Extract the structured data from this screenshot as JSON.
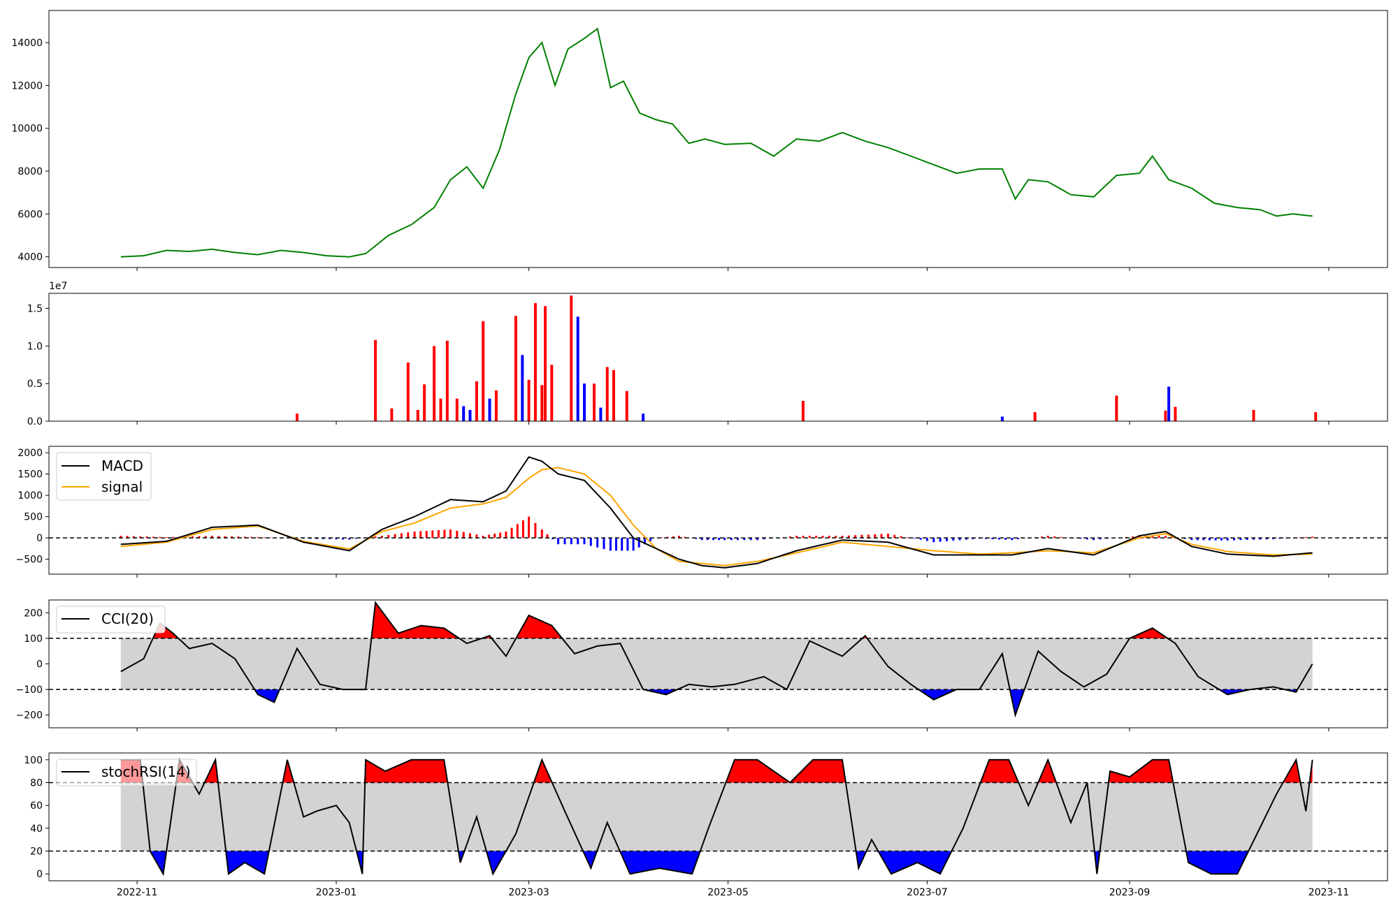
{
  "chart_data": [
    {
      "type": "line",
      "name": "price",
      "color": "#008000",
      "ylim": [
        3500,
        15500
      ],
      "y_ticks": [
        4000,
        6000,
        8000,
        10000,
        12000,
        14000
      ],
      "y_tick_labels": [
        "4000",
        "6000",
        "8000",
        "10000",
        "12000",
        "14000"
      ],
      "x": [
        "2022-10-27",
        "2022-11-03",
        "2022-11-10",
        "2022-11-17",
        "2022-11-24",
        "2022-12-01",
        "2022-12-08",
        "2022-12-15",
        "2022-12-22",
        "2022-12-29",
        "2023-01-05",
        "2023-01-10",
        "2023-01-17",
        "2023-01-24",
        "2023-01-31",
        "2023-02-05",
        "2023-02-10",
        "2023-02-15",
        "2023-02-20",
        "2023-02-25",
        "2023-03-01",
        "2023-03-05",
        "2023-03-09",
        "2023-03-13",
        "2023-03-18",
        "2023-03-22",
        "2023-03-26",
        "2023-03-30",
        "2023-04-04",
        "2023-04-09",
        "2023-04-14",
        "2023-04-19",
        "2023-04-24",
        "2023-04-30",
        "2023-05-08",
        "2023-05-15",
        "2023-05-22",
        "2023-05-29",
        "2023-06-05",
        "2023-06-12",
        "2023-06-19",
        "2023-06-26",
        "2023-07-03",
        "2023-07-10",
        "2023-07-17",
        "2023-07-24",
        "2023-07-28",
        "2023-08-01",
        "2023-08-07",
        "2023-08-14",
        "2023-08-21",
        "2023-08-28",
        "2023-09-04",
        "2023-09-08",
        "2023-09-13",
        "2023-09-20",
        "2023-09-27",
        "2023-10-04",
        "2023-10-11",
        "2023-10-16",
        "2023-10-21",
        "2023-10-27"
      ],
      "y": [
        4000,
        4050,
        4300,
        4250,
        4350,
        4200,
        4100,
        4300,
        4200,
        4050,
        4000,
        4150,
        5000,
        5500,
        6300,
        7600,
        8200,
        7200,
        9000,
        11600,
        13300,
        14000,
        12000,
        13700,
        14200,
        14650,
        11900,
        12200,
        10700,
        10400,
        10200,
        9300,
        9500,
        9250,
        9300,
        8700,
        9500,
        9400,
        9800,
        9400,
        9100,
        8700,
        8300,
        7900,
        8100,
        8100,
        6700,
        7600,
        7500,
        6900,
        6800,
        7800,
        7900,
        8700,
        7600,
        7200,
        6500,
        6300,
        6200,
        5900,
        6000,
        5900
      ]
    },
    {
      "type": "bar",
      "name": "volume",
      "scale_label": "1e7",
      "ylim": [
        0,
        1.7
      ],
      "y_ticks": [
        0,
        0.5,
        1.0,
        1.5
      ],
      "y_tick_labels": [
        "0.0",
        "0.5",
        "1.0",
        "1.5"
      ],
      "up_color": "#ff0000",
      "down_color": "#0000ff",
      "bars": [
        {
          "date": "2022-12-20",
          "value": 0.1,
          "up": true
        },
        {
          "date": "2023-01-13",
          "value": 1.08,
          "up": true
        },
        {
          "date": "2023-01-18",
          "value": 0.17,
          "up": true
        },
        {
          "date": "2023-01-23",
          "value": 0.78,
          "up": true
        },
        {
          "date": "2023-01-26",
          "value": 0.15,
          "up": true
        },
        {
          "date": "2023-01-28",
          "value": 0.49,
          "up": true
        },
        {
          "date": "2023-01-31",
          "value": 1.0,
          "up": true
        },
        {
          "date": "2023-02-02",
          "value": 0.3,
          "up": true
        },
        {
          "date": "2023-02-04",
          "value": 1.07,
          "up": true
        },
        {
          "date": "2023-02-07",
          "value": 0.3,
          "up": true
        },
        {
          "date": "2023-02-09",
          "value": 0.2,
          "up": false
        },
        {
          "date": "2023-02-11",
          "value": 0.15,
          "up": false
        },
        {
          "date": "2023-02-13",
          "value": 0.53,
          "up": true
        },
        {
          "date": "2023-02-15",
          "value": 1.33,
          "up": true
        },
        {
          "date": "2023-02-17",
          "value": 0.3,
          "up": false
        },
        {
          "date": "2023-02-19",
          "value": 0.41,
          "up": true
        },
        {
          "date": "2023-02-25",
          "value": 1.4,
          "up": true
        },
        {
          "date": "2023-02-27",
          "value": 0.88,
          "up": false
        },
        {
          "date": "2023-03-01",
          "value": 0.55,
          "up": true
        },
        {
          "date": "2023-03-03",
          "value": 1.57,
          "up": true
        },
        {
          "date": "2023-03-05",
          "value": 0.48,
          "up": true
        },
        {
          "date": "2023-03-06",
          "value": 1.53,
          "up": true
        },
        {
          "date": "2023-03-08",
          "value": 0.75,
          "up": true
        },
        {
          "date": "2023-03-14",
          "value": 1.67,
          "up": true
        },
        {
          "date": "2023-03-16",
          "value": 1.39,
          "up": false
        },
        {
          "date": "2023-03-18",
          "value": 0.5,
          "up": false
        },
        {
          "date": "2023-03-21",
          "value": 0.5,
          "up": true
        },
        {
          "date": "2023-03-23",
          "value": 0.18,
          "up": false
        },
        {
          "date": "2023-03-25",
          "value": 0.72,
          "up": true
        },
        {
          "date": "2023-03-27",
          "value": 0.68,
          "up": true
        },
        {
          "date": "2023-03-31",
          "value": 0.4,
          "up": true
        },
        {
          "date": "2023-04-05",
          "value": 0.1,
          "up": false
        },
        {
          "date": "2023-05-24",
          "value": 0.27,
          "up": true
        },
        {
          "date": "2023-07-24",
          "value": 0.06,
          "up": false
        },
        {
          "date": "2023-08-03",
          "value": 0.12,
          "up": true
        },
        {
          "date": "2023-08-28",
          "value": 0.34,
          "up": true
        },
        {
          "date": "2023-09-12",
          "value": 0.14,
          "up": true
        },
        {
          "date": "2023-09-13",
          "value": 0.46,
          "up": false
        },
        {
          "date": "2023-09-15",
          "value": 0.19,
          "up": true
        },
        {
          "date": "2023-10-09",
          "value": 0.15,
          "up": true
        },
        {
          "date": "2023-10-28",
          "value": 0.12,
          "up": true
        }
      ]
    },
    {
      "type": "line",
      "name": "macd",
      "ylim": [
        -850,
        2150
      ],
      "y_ticks": [
        -500,
        0,
        500,
        1000,
        1500,
        2000
      ],
      "y_tick_labels": [
        "−500",
        "0",
        "500",
        "1000",
        "1500",
        "2000"
      ],
      "zero_line": 0,
      "legend": [
        {
          "label": "MACD",
          "color": "#000000"
        },
        {
          "label": "signal",
          "color": "#ffa500"
        }
      ],
      "x": [
        "2022-10-27",
        "2022-11-10",
        "2022-11-24",
        "2022-12-08",
        "2022-12-22",
        "2023-01-05",
        "2023-01-15",
        "2023-01-25",
        "2023-02-05",
        "2023-02-15",
        "2023-02-22",
        "2023-03-01",
        "2023-03-05",
        "2023-03-10",
        "2023-03-18",
        "2023-03-26",
        "2023-04-02",
        "2023-04-09",
        "2023-04-16",
        "2023-04-23",
        "2023-04-30",
        "2023-05-10",
        "2023-05-22",
        "2023-06-05",
        "2023-06-19",
        "2023-07-03",
        "2023-07-17",
        "2023-07-27",
        "2023-08-07",
        "2023-08-21",
        "2023-09-04",
        "2023-09-12",
        "2023-09-20",
        "2023-10-01",
        "2023-10-15",
        "2023-10-27"
      ],
      "series": [
        {
          "name": "MACD",
          "color": "#000000",
          "values": [
            -150,
            -80,
            250,
            300,
            -100,
            -300,
            200,
            500,
            900,
            850,
            1100,
            1900,
            1800,
            1500,
            1350,
            700,
            0,
            -250,
            -500,
            -650,
            -700,
            -600,
            -300,
            -50,
            -100,
            -400,
            -400,
            -400,
            -250,
            -400,
            50,
            150,
            -200,
            -380,
            -430,
            -350
          ]
        },
        {
          "name": "signal",
          "color": "#ffa500",
          "values": [
            -200,
            -100,
            200,
            280,
            -80,
            -260,
            150,
            350,
            700,
            800,
            950,
            1400,
            1600,
            1650,
            1500,
            1000,
            300,
            -250,
            -550,
            -600,
            -650,
            -550,
            -350,
            -100,
            -200,
            -300,
            -380,
            -350,
            -300,
            -350,
            0,
            100,
            -150,
            -320,
            -400,
            -380
          ]
        }
      ],
      "histogram_up_color": "#ff0000",
      "histogram_down_color": "#0000ff"
    },
    {
      "type": "line",
      "name": "cci",
      "ylim": [
        -250,
        250
      ],
      "y_ticks": [
        -200,
        -100,
        0,
        100,
        200
      ],
      "y_tick_labels": [
        "−200",
        "−100",
        "0",
        "100",
        "200"
      ],
      "thresholds": [
        100,
        -100
      ],
      "band": [
        -100,
        100
      ],
      "legend": [
        {
          "label": "CCI(20)",
          "color": "#000000"
        }
      ],
      "x": [
        "2022-10-27",
        "2022-11-03",
        "2022-11-08",
        "2022-11-12",
        "2022-11-17",
        "2022-11-24",
        "2022-12-01",
        "2022-12-08",
        "2022-12-13",
        "2022-12-20",
        "2022-12-27",
        "2023-01-03",
        "2023-01-10",
        "2023-01-13",
        "2023-01-20",
        "2023-01-27",
        "2023-02-03",
        "2023-02-10",
        "2023-02-17",
        "2023-02-22",
        "2023-03-01",
        "2023-03-08",
        "2023-03-15",
        "2023-03-22",
        "2023-03-29",
        "2023-04-05",
        "2023-04-12",
        "2023-04-19",
        "2023-04-26",
        "2023-05-03",
        "2023-05-12",
        "2023-05-19",
        "2023-05-26",
        "2023-06-05",
        "2023-06-12",
        "2023-06-19",
        "2023-06-26",
        "2023-07-03",
        "2023-07-10",
        "2023-07-17",
        "2023-07-24",
        "2023-07-28",
        "2023-08-04",
        "2023-08-11",
        "2023-08-18",
        "2023-08-25",
        "2023-09-01",
        "2023-09-08",
        "2023-09-15",
        "2023-09-22",
        "2023-10-01",
        "2023-10-08",
        "2023-10-15",
        "2023-10-22",
        "2023-10-27"
      ],
      "y": [
        -30,
        20,
        160,
        120,
        60,
        80,
        20,
        -120,
        -150,
        60,
        -80,
        -100,
        -100,
        240,
        120,
        150,
        140,
        80,
        110,
        30,
        190,
        150,
        40,
        70,
        80,
        -100,
        -120,
        -80,
        -90,
        -80,
        -50,
        -100,
        90,
        30,
        110,
        -10,
        -80,
        -140,
        -100,
        -100,
        40,
        -200,
        50,
        -30,
        -90,
        -40,
        100,
        140,
        80,
        -50,
        -120,
        -100,
        -90,
        -110,
        0
      ]
    },
    {
      "type": "line",
      "name": "stochrsi",
      "ylim": [
        -6,
        106
      ],
      "y_ticks": [
        0,
        20,
        40,
        60,
        80,
        100
      ],
      "y_tick_labels": [
        "0",
        "20",
        "40",
        "60",
        "80",
        "100"
      ],
      "thresholds": [
        80,
        20
      ],
      "band": [
        20,
        80
      ],
      "legend": [
        {
          "label": "stochRSI(14)",
          "color": "#000000"
        }
      ],
      "x": [
        "2022-10-27",
        "2022-11-02",
        "2022-11-05",
        "2022-11-09",
        "2022-11-14",
        "2022-11-20",
        "2022-11-25",
        "2022-11-29",
        "2022-12-04",
        "2022-12-10",
        "2022-12-17",
        "2022-12-22",
        "2022-12-26",
        "2023-01-01",
        "2023-01-05",
        "2023-01-09",
        "2023-01-10",
        "2023-01-16",
        "2023-01-24",
        "2023-02-03",
        "2023-02-08",
        "2023-02-13",
        "2023-02-18",
        "2023-02-25",
        "2023-03-05",
        "2023-03-12",
        "2023-03-20",
        "2023-03-25",
        "2023-04-01",
        "2023-04-10",
        "2023-04-20",
        "2023-04-25",
        "2023-05-03",
        "2023-05-10",
        "2023-05-20",
        "2023-05-27",
        "2023-06-05",
        "2023-06-10",
        "2023-06-14",
        "2023-06-20",
        "2023-06-28",
        "2023-07-05",
        "2023-07-12",
        "2023-07-20",
        "2023-07-26",
        "2023-08-01",
        "2023-08-07",
        "2023-08-14",
        "2023-08-19",
        "2023-08-22",
        "2023-08-26",
        "2023-09-01",
        "2023-09-08",
        "2023-09-13",
        "2023-09-19",
        "2023-09-26",
        "2023-10-04",
        "2023-10-10",
        "2023-10-16",
        "2023-10-22",
        "2023-10-25",
        "2023-10-27"
      ],
      "y": [
        100,
        100,
        20,
        0,
        100,
        70,
        100,
        0,
        10,
        0,
        100,
        50,
        55,
        60,
        45,
        0,
        100,
        90,
        100,
        100,
        10,
        50,
        0,
        35,
        100,
        55,
        5,
        45,
        0,
        5,
        0,
        40,
        100,
        100,
        80,
        100,
        100,
        5,
        30,
        0,
        10,
        0,
        40,
        100,
        100,
        60,
        100,
        45,
        80,
        0,
        90,
        85,
        100,
        100,
        10,
        0,
        0,
        35,
        70,
        100,
        55,
        100
      ]
    }
  ],
  "x_axis": {
    "ticks": [
      "2022-11-01",
      "2023-01-01",
      "2023-03-01",
      "2023-05-01",
      "2023-07-01",
      "2023-09-01",
      "2023-11-01"
    ],
    "tick_labels": [
      "2022-11",
      "2023-01",
      "2023-03",
      "2023-05",
      "2023-07",
      "2023-09",
      "2023-11"
    ],
    "range": [
      "2022-10-05",
      "2023-11-19"
    ]
  },
  "colors": {
    "up": "#ff0000",
    "down": "#0000ff",
    "band": "#d3d3d3",
    "price": "#008000",
    "signal": "#ffa500"
  }
}
